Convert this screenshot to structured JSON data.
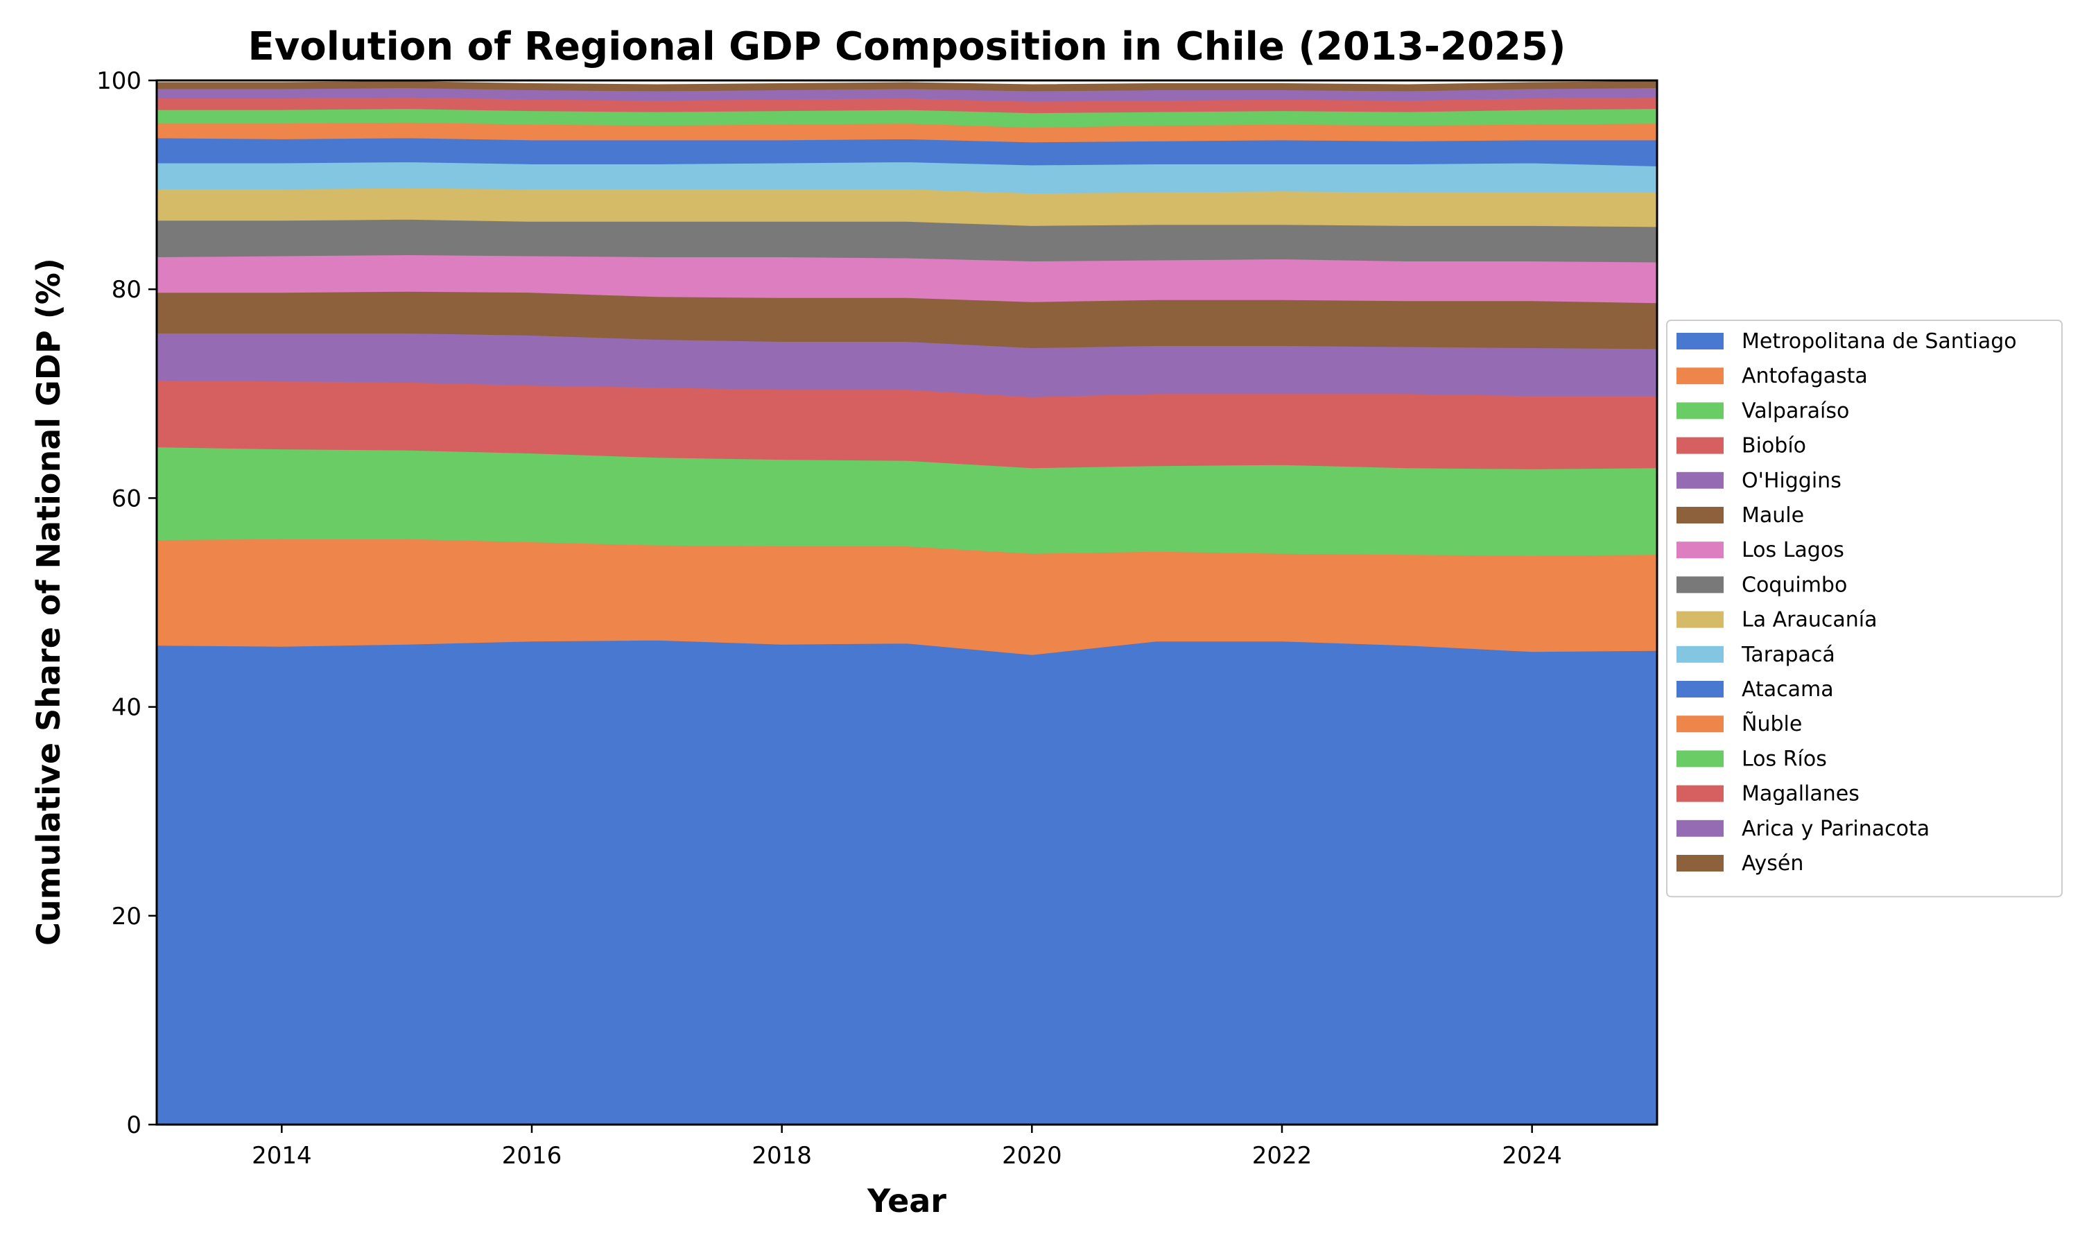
{
  "chart_data": {
    "type": "area",
    "stacked": true,
    "title": "Evolution of Regional GDP Composition in Chile (2013-2025)",
    "xlabel": "Year",
    "ylabel": "Cumulative Share of National GDP (%)",
    "xlim": [
      2013,
      2025
    ],
    "ylim": [
      0,
      100
    ],
    "xticks": [
      "2014",
      "2016",
      "2018",
      "2020",
      "2022",
      "2024"
    ],
    "yticks": [
      "0",
      "20",
      "40",
      "60",
      "80",
      "100"
    ],
    "grid": false,
    "legend_position": "right",
    "x": [
      2013,
      2014,
      2015,
      2016,
      2017,
      2018,
      2019,
      2020,
      2021,
      2022,
      2023,
      2024,
      2025
    ],
    "series": [
      {
        "name": "Metropolitana de Santiago",
        "color": "#4878d0",
        "values": [
          45.9,
          45.8,
          46.0,
          46.3,
          46.4,
          46.0,
          46.1,
          45.0,
          46.3,
          46.3,
          45.9,
          45.3,
          45.4
        ]
      },
      {
        "name": "Antofagasta",
        "color": "#ee854a",
        "values": [
          10.1,
          10.3,
          10.1,
          9.5,
          9.1,
          9.4,
          9.3,
          9.7,
          8.6,
          8.4,
          8.7,
          9.2,
          9.2
        ]
      },
      {
        "name": "Valparaíso",
        "color": "#6acc64",
        "values": [
          8.9,
          8.6,
          8.5,
          8.5,
          8.4,
          8.3,
          8.2,
          8.2,
          8.2,
          8.5,
          8.3,
          8.3,
          8.3
        ]
      },
      {
        "name": "Biobío",
        "color": "#d65f5f",
        "values": [
          6.4,
          6.5,
          6.5,
          6.5,
          6.7,
          6.7,
          6.8,
          6.8,
          6.9,
          6.8,
          7.1,
          7.0,
          6.9
        ]
      },
      {
        "name": "O'Higgins",
        "color": "#956cb4",
        "values": [
          4.5,
          4.6,
          4.7,
          4.8,
          4.6,
          4.6,
          4.6,
          4.7,
          4.6,
          4.6,
          4.5,
          4.6,
          4.5
        ]
      },
      {
        "name": "Maule",
        "color": "#8c613c",
        "values": [
          3.9,
          3.9,
          4.0,
          4.1,
          4.1,
          4.2,
          4.2,
          4.4,
          4.4,
          4.4,
          4.4,
          4.5,
          4.4
        ]
      },
      {
        "name": "Los Lagos",
        "color": "#dc7ec0",
        "values": [
          3.4,
          3.5,
          3.5,
          3.5,
          3.8,
          3.9,
          3.8,
          3.9,
          3.8,
          3.9,
          3.8,
          3.8,
          3.9
        ]
      },
      {
        "name": "Coquimbo",
        "color": "#797979",
        "values": [
          3.5,
          3.4,
          3.4,
          3.3,
          3.4,
          3.4,
          3.5,
          3.4,
          3.4,
          3.3,
          3.4,
          3.4,
          3.4
        ]
      },
      {
        "name": "La Araucanía",
        "color": "#d5bb67",
        "values": [
          3.0,
          3.0,
          3.0,
          3.1,
          3.1,
          3.1,
          3.1,
          3.1,
          3.1,
          3.2,
          3.2,
          3.2,
          3.3
        ]
      },
      {
        "name": "Tarapacá",
        "color": "#82c6e2",
        "values": [
          2.5,
          2.5,
          2.5,
          2.4,
          2.4,
          2.5,
          2.6,
          2.7,
          2.7,
          2.6,
          2.7,
          2.8,
          2.5
        ]
      },
      {
        "name": "Atacama",
        "color": "#4878d0",
        "values": [
          2.4,
          2.3,
          2.3,
          2.3,
          2.3,
          2.2,
          2.2,
          2.2,
          2.2,
          2.3,
          2.2,
          2.2,
          2.5
        ]
      },
      {
        "name": "Ñuble",
        "color": "#ee854a",
        "values": [
          1.4,
          1.5,
          1.5,
          1.5,
          1.4,
          1.5,
          1.5,
          1.4,
          1.5,
          1.5,
          1.5,
          1.5,
          1.6
        ]
      },
      {
        "name": "Los Ríos",
        "color": "#6acc64",
        "values": [
          1.3,
          1.3,
          1.3,
          1.3,
          1.3,
          1.3,
          1.3,
          1.4,
          1.3,
          1.3,
          1.3,
          1.4,
          1.4
        ]
      },
      {
        "name": "Magallanes",
        "color": "#d65f5f",
        "values": [
          1.1,
          1.1,
          1.1,
          1.1,
          1.1,
          1.1,
          1.1,
          1.1,
          1.1,
          1.1,
          1.1,
          1.1,
          1.1
        ]
      },
      {
        "name": "Arica y Parinacota",
        "color": "#956cb4",
        "values": [
          0.9,
          0.9,
          0.9,
          0.9,
          0.9,
          0.9,
          0.9,
          1.0,
          1.0,
          0.9,
          0.9,
          0.9,
          0.9
        ]
      },
      {
        "name": "Aysén",
        "color": "#8c613c",
        "values": [
          0.6,
          0.6,
          0.6,
          0.6,
          0.6,
          0.6,
          0.6,
          0.6,
          0.6,
          0.6,
          0.6,
          0.6,
          0.6
        ]
      }
    ]
  }
}
